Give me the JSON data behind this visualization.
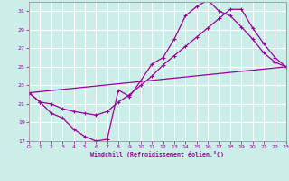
{
  "xlabel": "Windchill (Refroidissement éolien,°C)",
  "bg_color": "#cceee8",
  "grid_color": "#ffffff",
  "line_color": "#990099",
  "x_min": 0,
  "x_max": 23,
  "y_min": 17,
  "y_max": 32,
  "yticks": [
    17,
    19,
    21,
    23,
    25,
    27,
    29,
    31
  ],
  "xticks": [
    0,
    1,
    2,
    3,
    4,
    5,
    6,
    7,
    8,
    9,
    10,
    11,
    12,
    13,
    14,
    15,
    16,
    17,
    18,
    19,
    20,
    21,
    22,
    23
  ],
  "line1_x": [
    0,
    1,
    2,
    3,
    4,
    5,
    6,
    7,
    8,
    9,
    10,
    11,
    12,
    13,
    14,
    15,
    16,
    17,
    18,
    19,
    20,
    21,
    22,
    23
  ],
  "line1_y": [
    22.2,
    21.2,
    20.0,
    19.5,
    18.3,
    17.5,
    17.0,
    17.2,
    22.5,
    21.8,
    23.5,
    25.3,
    26.0,
    28.0,
    30.5,
    31.5,
    32.2,
    31.0,
    30.5,
    29.3,
    28.0,
    26.5,
    25.5,
    25.0
  ],
  "line2_x": [
    0,
    1,
    2,
    3,
    4,
    5,
    6,
    7,
    8,
    9,
    10,
    11,
    12,
    13,
    14,
    15,
    16,
    17,
    18,
    19,
    20,
    21,
    22,
    23
  ],
  "line2_y": [
    22.2,
    21.2,
    21.0,
    20.5,
    20.2,
    20.0,
    19.8,
    20.2,
    21.2,
    22.0,
    23.0,
    24.0,
    25.2,
    26.2,
    27.2,
    28.2,
    29.2,
    30.2,
    31.2,
    31.2,
    29.2,
    27.5,
    26.0,
    25.0
  ],
  "line3_x": [
    0,
    23
  ],
  "line3_y": [
    22.2,
    25.0
  ]
}
